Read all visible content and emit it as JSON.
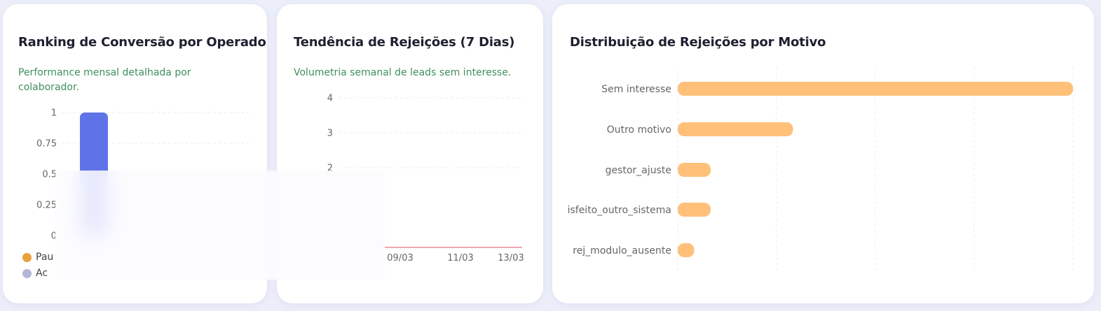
{
  "cards": [
    {
      "title": "Ranking de Conversão por Operador",
      "subtitle": "Performance mensal detalhada por colaborador."
    },
    {
      "title": "Tendência de Rejeições (7 Dias)",
      "subtitle": "Volumetria semanal de leads sem interesse."
    },
    {
      "title": "Distribuição de Rejeições por Motivo"
    }
  ],
  "legend": [
    {
      "label": "Pau",
      "icon": "gold-medal-icon"
    },
    {
      "label": "Ac",
      "icon": "silver-medal-icon"
    }
  ],
  "colors": {
    "ranking_bar": "#5f73e8",
    "trend_line": "#f2a6b3",
    "reasons_bar": "#ffc07a",
    "subtitle": "#3f8f5e",
    "background": "#eceef9"
  },
  "chart_data": [
    {
      "type": "bar",
      "title": "Ranking de Conversão por Operador",
      "y_ticks": [
        "0",
        "0.25",
        "0.5",
        "0.75",
        "1"
      ],
      "ylim": [
        0,
        1
      ],
      "values": [
        1
      ],
      "grid": true
    },
    {
      "type": "line",
      "title": "Tendência de Rejeições (7 Dias)",
      "y_ticks": [
        "2",
        "3",
        "4"
      ],
      "x_ticks": [
        "09/03",
        "11/03",
        "13/03"
      ],
      "ylim": [
        0,
        4
      ],
      "grid": true
    },
    {
      "type": "bar",
      "orientation": "horizontal",
      "title": "Distribuição de Rejeições por Motivo",
      "categories": [
        "Sem interesse",
        "Outro motivo",
        "gestor_ajuste",
        "isfeito_outro_sistema",
        "rej_modulo_ausente"
      ],
      "values": [
        24,
        7,
        2,
        2,
        1
      ],
      "xlim": [
        0,
        24
      ],
      "grid": true
    }
  ]
}
